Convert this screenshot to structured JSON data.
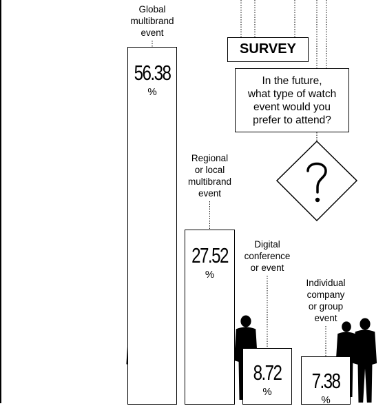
{
  "survey": {
    "title": "SURVEY",
    "question": "In the future,\nwhat type of watch\nevent would you\nprefer to attend?",
    "icon": "question-mark-icon"
  },
  "chart_data": {
    "type": "bar",
    "categories": [
      "Global\nmultibrand\nevent",
      "Regional\nor local\nmultibrand\nevent",
      "Digital\nconference\nor event",
      "Individual\ncompany\nor group\nevent"
    ],
    "values": [
      56.38,
      27.52,
      8.72,
      7.38
    ],
    "value_labels": [
      "56.38",
      "27.52",
      "8.72",
      "7.38"
    ],
    "unit": "%",
    "ylim": [
      0,
      56.38
    ],
    "grid": false,
    "legend": "none"
  }
}
